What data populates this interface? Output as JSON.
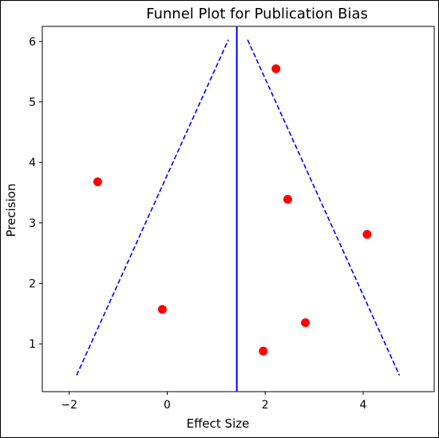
{
  "chart_data": {
    "type": "scatter",
    "title": "Funnel Plot for Publication Bias",
    "xlabel": "Effect Size",
    "ylabel": "Precision",
    "xlim": [
      -2.55,
      5.45
    ],
    "ylim": [
      0.21,
      6.25
    ],
    "x_ticks": [
      -2,
      0,
      2,
      4
    ],
    "x_tick_labels": [
      "−2",
      "0",
      "2",
      "4"
    ],
    "y_ticks": [
      1,
      2,
      3,
      4,
      5,
      6
    ],
    "y_tick_labels": [
      "1",
      "2",
      "3",
      "4",
      "5",
      "6"
    ],
    "grid": false,
    "points": [
      {
        "x": -1.42,
        "y": 3.68
      },
      {
        "x": -0.1,
        "y": 1.57
      },
      {
        "x": 1.96,
        "y": 0.88
      },
      {
        "x": 2.22,
        "y": 5.55
      },
      {
        "x": 2.46,
        "y": 3.39
      },
      {
        "x": 2.82,
        "y": 1.35
      },
      {
        "x": 4.08,
        "y": 2.81
      }
    ],
    "mean_effect": 1.42,
    "funnel_left": [
      [
        -1.85,
        0.48
      ],
      [
        1.25,
        6.03
      ]
    ],
    "funnel_right": [
      [
        1.64,
        6.03
      ],
      [
        4.74,
        0.48
      ]
    ],
    "colors": {
      "points": "#ff0000",
      "mean_line": "#0000ff",
      "funnel": "#0000ff"
    }
  }
}
